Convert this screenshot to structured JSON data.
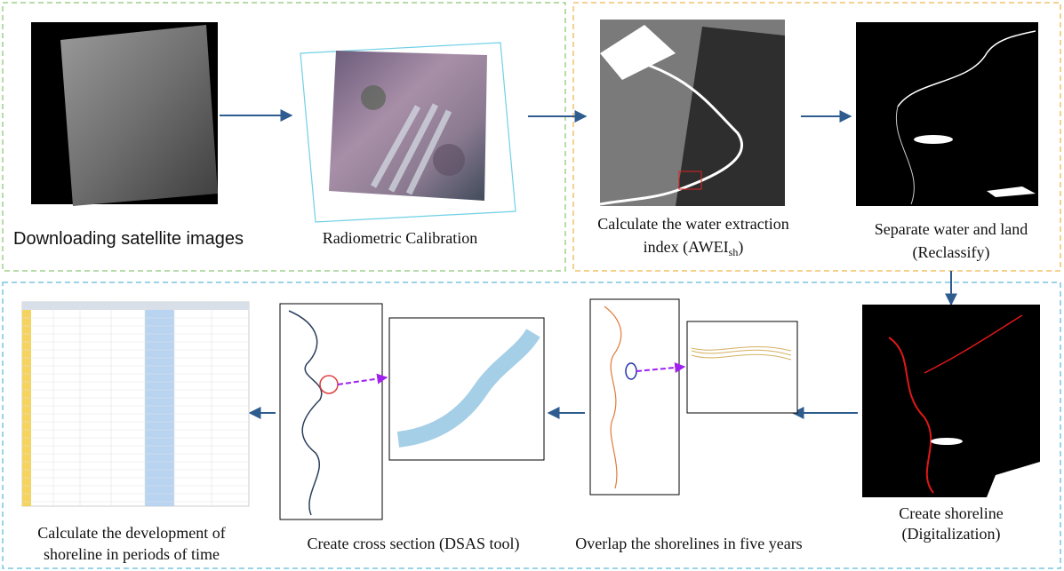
{
  "steps": {
    "download": "Downloading satellite images",
    "calibration": "Radiometric Calibration",
    "water_index": {
      "line1": "Calculate the water extraction",
      "line2_start": "index (AWEI",
      "line2_sub": "sh",
      "line2_end": ")"
    },
    "reclassify": {
      "line1": "Separate water and land",
      "line2": "(Reclassify)"
    },
    "shoreline": {
      "line1": "Create shoreline",
      "line2": "(Digitalization)"
    },
    "overlap": "Overlap the shorelines in five years",
    "cross_section": "Create cross section (DSAS tool)",
    "development": {
      "line1": "Calculate the development of",
      "line2": "shoreline in periods of time"
    }
  }
}
